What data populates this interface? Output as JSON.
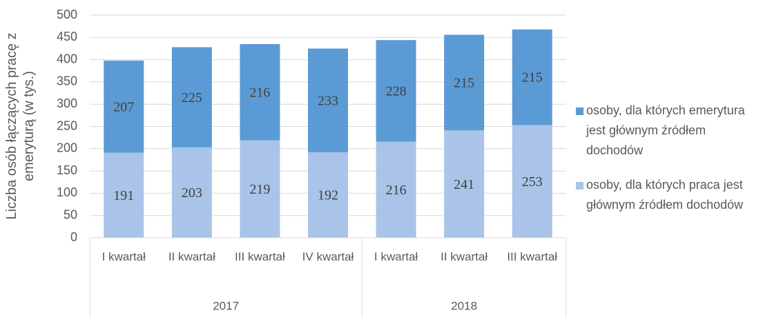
{
  "chart_data": {
    "type": "stacked_bar",
    "y_label": "Liczba osób łączących pracę z emeryturą (w tys.)",
    "groups": [
      {
        "name": "2017",
        "categories": [
          "I kwartał",
          "II kwartał",
          "III kwartał",
          "IV kwartał"
        ]
      },
      {
        "name": "2018",
        "categories": [
          "I kwartał",
          "II kwartał",
          "III kwartał"
        ]
      }
    ],
    "series": [
      {
        "name": "osoby, dla których praca jest głównym źródłem dochodów",
        "color": "#a9c4e8",
        "values": [
          191,
          203,
          219,
          192,
          216,
          241,
          253
        ]
      },
      {
        "name": "osoby, dla których emerytura jest głównym źródłem dochodów",
        "color": "#5b9bd5",
        "values": [
          207,
          225,
          216,
          233,
          228,
          215,
          215
        ]
      }
    ],
    "ylim": [
      0,
      500
    ],
    "yticks": [
      0,
      50,
      100,
      150,
      200,
      250,
      300,
      350,
      400,
      450,
      500
    ],
    "grid": true,
    "legend": "right"
  }
}
